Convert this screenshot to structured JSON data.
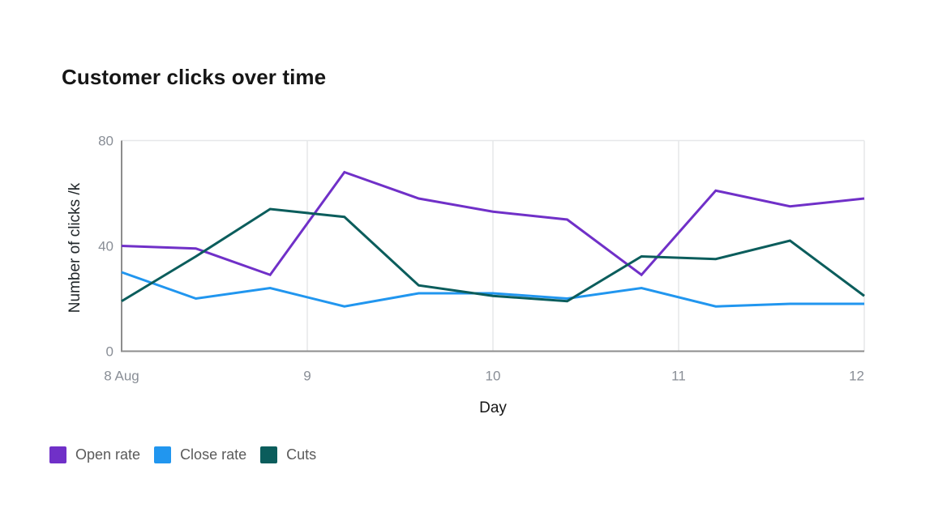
{
  "title": "Customer clicks over time",
  "chart_data": {
    "type": "line",
    "title": "Customer clicks over time",
    "xlabel": "Day",
    "ylabel": "Number of clicks /k",
    "xlim": [
      8,
      12
    ],
    "ylim": [
      0,
      80
    ],
    "x": [
      8.0,
      8.4,
      8.8,
      9.2,
      9.6,
      10.0,
      10.4,
      10.8,
      11.2,
      11.6,
      12.0
    ],
    "x_tick_values": [
      8,
      9,
      10,
      11,
      12
    ],
    "x_tick_labels": [
      "8 Aug",
      "9",
      "10",
      "11",
      "12"
    ],
    "y_ticks": [
      0,
      40,
      80
    ],
    "grid": "vertical-only, plus top border line",
    "legend_position": "bottom-left",
    "series": [
      {
        "name": "Open rate",
        "color": "#7030c8",
        "values": [
          40,
          39,
          29,
          68,
          58,
          53,
          50,
          29,
          61,
          55,
          58
        ]
      },
      {
        "name": "Close rate",
        "color": "#2196ef",
        "values": [
          30,
          20,
          24,
          17,
          22,
          22,
          20,
          24,
          17,
          18,
          18
        ]
      },
      {
        "name": "Cuts",
        "color": "#0b5d5c",
        "values": [
          19,
          36,
          54,
          51,
          25,
          21,
          19,
          36,
          35,
          42,
          21
        ]
      }
    ],
    "style": {
      "grid_color": "#e6e7e9",
      "axis_color": "#8d8d8d",
      "tick_text_color": "#898e96",
      "line_width": 3
    }
  }
}
